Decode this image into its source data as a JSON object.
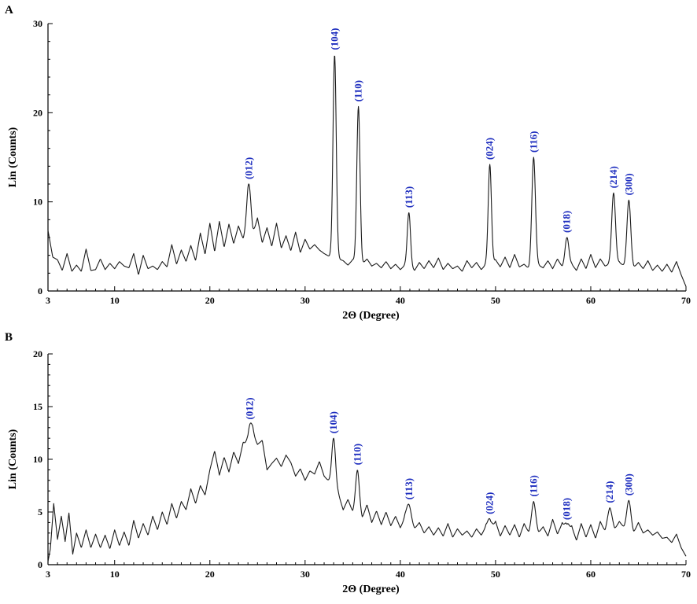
{
  "chart_data": [
    {
      "type": "line",
      "panel": "A",
      "xlabel": "2Θ (Degree)",
      "ylabel": "Lin (Counts)",
      "xlim": [
        3,
        70
      ],
      "ylim": [
        0,
        30
      ],
      "xticks": [
        3,
        10,
        20,
        30,
        40,
        50,
        60,
        70
      ],
      "yticks": [
        0,
        10,
        20,
        30
      ],
      "grid": false,
      "baseline": [
        [
          3.0,
          6.8
        ],
        [
          3.5,
          3.8
        ],
        [
          4.0,
          3.5
        ],
        [
          4.5,
          2.3
        ],
        [
          5.0,
          4.2
        ],
        [
          5.5,
          2.2
        ],
        [
          6.0,
          2.9
        ],
        [
          6.5,
          2.2
        ],
        [
          7.0,
          4.7
        ],
        [
          7.5,
          2.3
        ],
        [
          8.0,
          2.4
        ],
        [
          8.5,
          3.6
        ],
        [
          9.0,
          2.4
        ],
        [
          9.5,
          3.1
        ],
        [
          10.0,
          2.5
        ],
        [
          10.5,
          3.3
        ],
        [
          11.0,
          2.8
        ],
        [
          11.5,
          2.6
        ],
        [
          12.0,
          4.2
        ],
        [
          12.5,
          1.8
        ],
        [
          13.0,
          4.0
        ],
        [
          13.5,
          2.5
        ],
        [
          14.0,
          2.8
        ],
        [
          14.5,
          2.4
        ],
        [
          15.0,
          3.3
        ],
        [
          15.5,
          2.7
        ],
        [
          16.0,
          5.2
        ],
        [
          16.5,
          3.0
        ],
        [
          17.0,
          4.6
        ],
        [
          17.5,
          3.3
        ],
        [
          18.0,
          5.1
        ],
        [
          18.5,
          3.4
        ],
        [
          19.0,
          6.5
        ],
        [
          19.5,
          4.1
        ],
        [
          20.0,
          7.6
        ],
        [
          20.5,
          4.4
        ],
        [
          21.0,
          7.8
        ],
        [
          21.5,
          4.9
        ],
        [
          22.0,
          7.5
        ],
        [
          22.5,
          5.3
        ],
        [
          23.0,
          7.3
        ],
        [
          23.5,
          5.8
        ],
        [
          24.0,
          7.0
        ],
        [
          24.5,
          6.2
        ],
        [
          25.0,
          8.2
        ],
        [
          25.5,
          5.4
        ],
        [
          26.0,
          7.1
        ],
        [
          26.5,
          5.0
        ],
        [
          27.0,
          7.6
        ],
        [
          27.5,
          4.8
        ],
        [
          28.0,
          6.2
        ],
        [
          28.5,
          4.5
        ],
        [
          29.0,
          6.6
        ],
        [
          29.5,
          4.3
        ],
        [
          30.0,
          5.8
        ],
        [
          30.5,
          4.7
        ],
        [
          31.0,
          5.2
        ],
        [
          31.5,
          4.6
        ],
        [
          32.0,
          4.2
        ],
        [
          32.5,
          3.9
        ],
        [
          33.0,
          3.8
        ],
        [
          33.5,
          3.6
        ],
        [
          34.0,
          3.4
        ],
        [
          34.5,
          2.9
        ],
        [
          35.0,
          3.5
        ],
        [
          35.5,
          3.2
        ],
        [
          36.0,
          3.0
        ],
        [
          36.5,
          3.6
        ],
        [
          37.0,
          2.8
        ],
        [
          37.5,
          3.1
        ],
        [
          38.0,
          2.6
        ],
        [
          38.5,
          3.3
        ],
        [
          39.0,
          2.5
        ],
        [
          39.5,
          3.0
        ],
        [
          40.0,
          2.4
        ],
        [
          40.5,
          2.9
        ],
        [
          41.0,
          2.7
        ],
        [
          41.5,
          2.3
        ],
        [
          42.0,
          3.2
        ],
        [
          42.5,
          2.5
        ],
        [
          43.0,
          3.4
        ],
        [
          43.5,
          2.6
        ],
        [
          44.0,
          3.7
        ],
        [
          44.5,
          2.4
        ],
        [
          45.0,
          3.1
        ],
        [
          45.5,
          2.5
        ],
        [
          46.0,
          2.8
        ],
        [
          46.5,
          2.2
        ],
        [
          47.0,
          3.4
        ],
        [
          47.5,
          2.6
        ],
        [
          48.0,
          3.2
        ],
        [
          48.5,
          2.4
        ],
        [
          49.0,
          3.0
        ],
        [
          49.5,
          2.8
        ],
        [
          50.0,
          3.5
        ],
        [
          50.5,
          2.7
        ],
        [
          51.0,
          3.8
        ],
        [
          51.5,
          2.6
        ],
        [
          52.0,
          4.1
        ],
        [
          52.5,
          2.7
        ],
        [
          53.0,
          3.0
        ],
        [
          53.5,
          2.5
        ],
        [
          54.0,
          3.2
        ],
        [
          54.5,
          2.9
        ],
        [
          55.0,
          2.6
        ],
        [
          55.5,
          3.4
        ],
        [
          56.0,
          2.5
        ],
        [
          56.5,
          3.6
        ],
        [
          57.0,
          2.7
        ],
        [
          57.5,
          2.8
        ],
        [
          58.0,
          3.0
        ],
        [
          58.5,
          2.3
        ],
        [
          59.0,
          3.6
        ],
        [
          59.5,
          2.5
        ],
        [
          60.0,
          4.1
        ],
        [
          60.5,
          2.6
        ],
        [
          61.0,
          3.6
        ],
        [
          61.5,
          2.8
        ],
        [
          62.0,
          3.0
        ],
        [
          62.5,
          2.7
        ],
        [
          63.0,
          3.2
        ],
        [
          63.5,
          2.8
        ],
        [
          64.0,
          3.0
        ],
        [
          64.5,
          2.6
        ],
        [
          65.0,
          3.2
        ],
        [
          65.5,
          2.5
        ],
        [
          66.0,
          3.4
        ],
        [
          66.5,
          2.3
        ],
        [
          67.0,
          2.9
        ],
        [
          67.5,
          2.2
        ],
        [
          68.0,
          3.0
        ],
        [
          68.5,
          2.1
        ],
        [
          69.0,
          3.3
        ],
        [
          69.5,
          1.8
        ],
        [
          70.0,
          0.5
        ]
      ],
      "peaks": [
        {
          "label": "(012)",
          "position": 24.1,
          "height": 12.0,
          "width": 0.22
        },
        {
          "label": "(104)",
          "position": 33.1,
          "height": 26.5,
          "width": 0.17
        },
        {
          "label": "(110)",
          "position": 35.6,
          "height": 20.7,
          "width": 0.17
        },
        {
          "label": "(113)",
          "position": 40.9,
          "height": 8.8,
          "width": 0.17
        },
        {
          "label": "(024)",
          "position": 49.4,
          "height": 14.2,
          "width": 0.17
        },
        {
          "label": "(116)",
          "position": 54.0,
          "height": 15.0,
          "width": 0.19
        },
        {
          "label": "(018)",
          "position": 57.5,
          "height": 6.0,
          "width": 0.2
        },
        {
          "label": "(214)",
          "position": 62.4,
          "height": 11.0,
          "width": 0.2
        },
        {
          "label": "(300)",
          "position": 64.0,
          "height": 10.2,
          "width": 0.2
        }
      ]
    },
    {
      "type": "line",
      "panel": "B",
      "xlabel": "2Θ (Degree)",
      "ylabel": "Lin (Counts)",
      "xlim": [
        3,
        70
      ],
      "ylim": [
        0,
        20
      ],
      "xticks": [
        3,
        10,
        20,
        30,
        40,
        50,
        60,
        70
      ],
      "yticks": [
        0,
        5,
        10,
        15,
        20
      ],
      "grid": false,
      "baseline": [
        [
          3.0,
          0.3
        ],
        [
          3.25,
          1.5
        ],
        [
          3.6,
          5.8
        ],
        [
          4.0,
          2.4
        ],
        [
          4.4,
          4.6
        ],
        [
          4.8,
          2.2
        ],
        [
          5.2,
          4.9
        ],
        [
          5.6,
          1.0
        ],
        [
          6.0,
          3.0
        ],
        [
          6.5,
          1.6
        ],
        [
          7.0,
          3.3
        ],
        [
          7.5,
          1.6
        ],
        [
          8.0,
          2.9
        ],
        [
          8.5,
          1.6
        ],
        [
          9.0,
          2.8
        ],
        [
          9.5,
          1.5
        ],
        [
          10.0,
          3.3
        ],
        [
          10.5,
          1.8
        ],
        [
          11.0,
          3.1
        ],
        [
          11.5,
          1.8
        ],
        [
          12.0,
          4.2
        ],
        [
          12.5,
          2.5
        ],
        [
          13.0,
          3.9
        ],
        [
          13.5,
          2.8
        ],
        [
          14.0,
          4.6
        ],
        [
          14.5,
          3.3
        ],
        [
          15.0,
          5.0
        ],
        [
          15.5,
          3.8
        ],
        [
          16.0,
          5.8
        ],
        [
          16.5,
          4.4
        ],
        [
          17.0,
          6.0
        ],
        [
          17.5,
          5.2
        ],
        [
          18.0,
          7.2
        ],
        [
          18.5,
          5.8
        ],
        [
          19.0,
          7.5
        ],
        [
          19.5,
          6.6
        ],
        [
          20.0,
          9.0
        ],
        [
          20.5,
          10.8
        ],
        [
          21.0,
          8.5
        ],
        [
          21.5,
          10.2
        ],
        [
          22.0,
          8.8
        ],
        [
          22.5,
          10.7
        ],
        [
          23.0,
          9.6
        ],
        [
          23.5,
          11.6
        ],
        [
          24.0,
          11.0
        ],
        [
          24.5,
          12.3
        ],
        [
          25.0,
          11.4
        ],
        [
          25.5,
          11.8
        ],
        [
          26.0,
          9.0
        ],
        [
          26.5,
          9.6
        ],
        [
          27.0,
          10.1
        ],
        [
          27.5,
          9.3
        ],
        [
          28.0,
          10.4
        ],
        [
          28.5,
          9.7
        ],
        [
          29.0,
          8.4
        ],
        [
          29.5,
          9.1
        ],
        [
          30.0,
          8.0
        ],
        [
          30.5,
          8.9
        ],
        [
          31.0,
          8.6
        ],
        [
          31.5,
          9.8
        ],
        [
          32.0,
          8.4
        ],
        [
          32.5,
          7.9
        ],
        [
          33.0,
          7.4
        ],
        [
          33.5,
          6.7
        ],
        [
          34.0,
          5.2
        ],
        [
          34.5,
          6.2
        ],
        [
          35.0,
          5.0
        ],
        [
          35.5,
          5.6
        ],
        [
          36.0,
          4.4
        ],
        [
          36.5,
          5.7
        ],
        [
          37.0,
          4.0
        ],
        [
          37.5,
          5.1
        ],
        [
          38.0,
          3.8
        ],
        [
          38.5,
          5.0
        ],
        [
          39.0,
          3.7
        ],
        [
          39.5,
          4.6
        ],
        [
          40.0,
          3.5
        ],
        [
          40.5,
          4.4
        ],
        [
          41.0,
          3.8
        ],
        [
          41.5,
          3.4
        ],
        [
          42.0,
          4.0
        ],
        [
          42.5,
          3.0
        ],
        [
          43.0,
          3.6
        ],
        [
          43.5,
          2.8
        ],
        [
          44.0,
          3.5
        ],
        [
          44.5,
          2.7
        ],
        [
          45.0,
          3.9
        ],
        [
          45.5,
          2.6
        ],
        [
          46.0,
          3.4
        ],
        [
          46.5,
          2.8
        ],
        [
          47.0,
          3.2
        ],
        [
          47.5,
          2.6
        ],
        [
          48.0,
          3.4
        ],
        [
          48.5,
          2.8
        ],
        [
          49.0,
          3.6
        ],
        [
          49.5,
          2.9
        ],
        [
          50.0,
          4.1
        ],
        [
          50.5,
          2.7
        ],
        [
          51.0,
          3.7
        ],
        [
          51.5,
          2.8
        ],
        [
          52.0,
          3.8
        ],
        [
          52.5,
          2.6
        ],
        [
          53.0,
          3.9
        ],
        [
          53.5,
          3.0
        ],
        [
          54.0,
          3.8
        ],
        [
          54.5,
          3.0
        ],
        [
          55.0,
          3.6
        ],
        [
          55.5,
          2.7
        ],
        [
          56.0,
          4.3
        ],
        [
          56.5,
          2.9
        ],
        [
          57.0,
          3.9
        ],
        [
          57.5,
          2.5
        ],
        [
          58.0,
          3.6
        ],
        [
          58.5,
          2.3
        ],
        [
          59.0,
          3.9
        ],
        [
          59.5,
          2.6
        ],
        [
          60.0,
          3.8
        ],
        [
          60.5,
          2.5
        ],
        [
          61.0,
          4.1
        ],
        [
          61.5,
          3.1
        ],
        [
          62.0,
          3.9
        ],
        [
          62.5,
          3.3
        ],
        [
          63.0,
          4.1
        ],
        [
          63.5,
          3.5
        ],
        [
          64.0,
          3.6
        ],
        [
          64.5,
          3.0
        ],
        [
          65.0,
          4.0
        ],
        [
          65.5,
          3.0
        ],
        [
          66.0,
          3.3
        ],
        [
          66.5,
          2.8
        ],
        [
          67.0,
          3.1
        ],
        [
          67.5,
          2.5
        ],
        [
          68.0,
          2.6
        ],
        [
          68.5,
          2.1
        ],
        [
          69.0,
          2.9
        ],
        [
          69.5,
          1.6
        ],
        [
          70.0,
          0.8
        ]
      ],
      "peaks": [
        {
          "label": "(012)",
          "position": 24.2,
          "height": 1.8,
          "width": 0.25
        },
        {
          "label": "(104)",
          "position": 33.0,
          "height": 4.6,
          "width": 0.2
        },
        {
          "label": "(110)",
          "position": 35.5,
          "height": 3.4,
          "width": 0.2
        },
        {
          "label": "(113)",
          "position": 40.9,
          "height": 1.8,
          "width": 0.25
        },
        {
          "label": "(024)",
          "position": 49.4,
          "height": 1.3,
          "width": 0.22
        },
        {
          "label": "(116)",
          "position": 54.0,
          "height": 2.2,
          "width": 0.22
        },
        {
          "label": "(018)",
          "position": 57.5,
          "height": 1.3,
          "width": 0.22
        },
        {
          "label": "(214)",
          "position": 62.0,
          "height": 1.5,
          "width": 0.25
        },
        {
          "label": "(300)",
          "position": 64.0,
          "height": 2.5,
          "width": 0.22
        }
      ]
    }
  ]
}
